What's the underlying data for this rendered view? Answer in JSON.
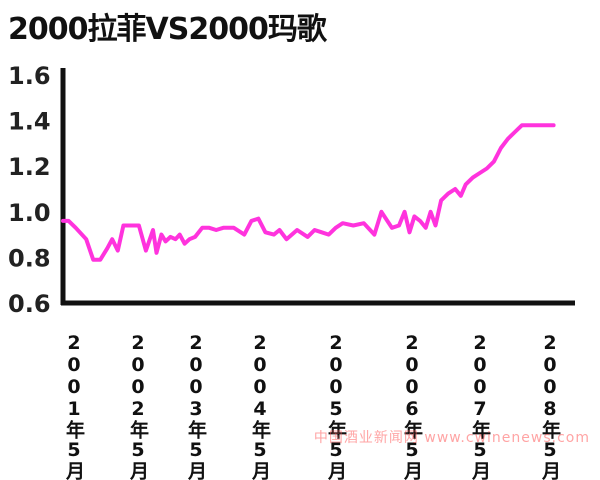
{
  "chart_data": {
    "type": "line",
    "title": "2000拉菲VS2000玛歌",
    "xlabel": "",
    "ylabel": "",
    "ylim": [
      0.6,
      1.6
    ],
    "yticks": [
      "1.6",
      "1.4",
      "1.2",
      "1.0",
      "0.8",
      "0.6"
    ],
    "xticks": [
      "2001年5月",
      "2002年5月",
      "2003年5月",
      "2004年5月",
      "2005年5月",
      "2006年5月",
      "2007年5月",
      "2008年5月"
    ],
    "grid": false,
    "line_color": "#ff33dd",
    "series": [
      {
        "x": [
          2001.42,
          2001.5,
          2001.6,
          2001.75,
          2001.85,
          2001.95,
          2002.05,
          2002.12,
          2002.2,
          2002.28,
          2002.34,
          2002.4,
          2002.5,
          2002.6,
          2002.7,
          2002.75,
          2002.82,
          2002.88,
          2002.95,
          2003.02,
          2003.08,
          2003.15,
          2003.22,
          2003.3,
          2003.4,
          2003.5,
          2003.6,
          2003.7,
          2003.85,
          2004.0,
          2004.1,
          2004.2,
          2004.3,
          2004.42,
          2004.5,
          2004.6,
          2004.75,
          2004.9,
          2005.0,
          2005.1,
          2005.2,
          2005.3,
          2005.4,
          2005.55,
          2005.7,
          2005.85,
          2005.95,
          2006.1,
          2006.2,
          2006.28,
          2006.35,
          2006.42,
          2006.5,
          2006.58,
          2006.65,
          2006.72,
          2006.8,
          2006.9,
          2007.0,
          2007.08,
          2007.15,
          2007.25,
          2007.35,
          2007.45,
          2007.55,
          2007.65,
          2007.75,
          2007.85,
          2007.95,
          2008.05,
          2008.15,
          2008.3,
          2008.4
        ],
        "y": [
          0.96,
          0.96,
          0.93,
          0.88,
          0.79,
          0.79,
          0.84,
          0.88,
          0.83,
          0.94,
          0.94,
          0.94,
          0.94,
          0.83,
          0.92,
          0.82,
          0.9,
          0.87,
          0.89,
          0.88,
          0.9,
          0.86,
          0.88,
          0.89,
          0.93,
          0.93,
          0.92,
          0.93,
          0.93,
          0.9,
          0.96,
          0.97,
          0.91,
          0.9,
          0.92,
          0.88,
          0.92,
          0.89,
          0.92,
          0.91,
          0.9,
          0.93,
          0.95,
          0.94,
          0.95,
          0.9,
          1.0,
          0.93,
          0.94,
          1.0,
          0.91,
          0.98,
          0.96,
          0.93,
          1.0,
          0.94,
          1.05,
          1.08,
          1.1,
          1.07,
          1.12,
          1.15,
          1.17,
          1.19,
          1.22,
          1.28,
          1.32,
          1.35,
          1.38,
          1.38,
          1.38,
          1.38,
          1.38
        ]
      }
    ]
  },
  "watermark": "中国酒业新闻网  www.cwinenews.com"
}
